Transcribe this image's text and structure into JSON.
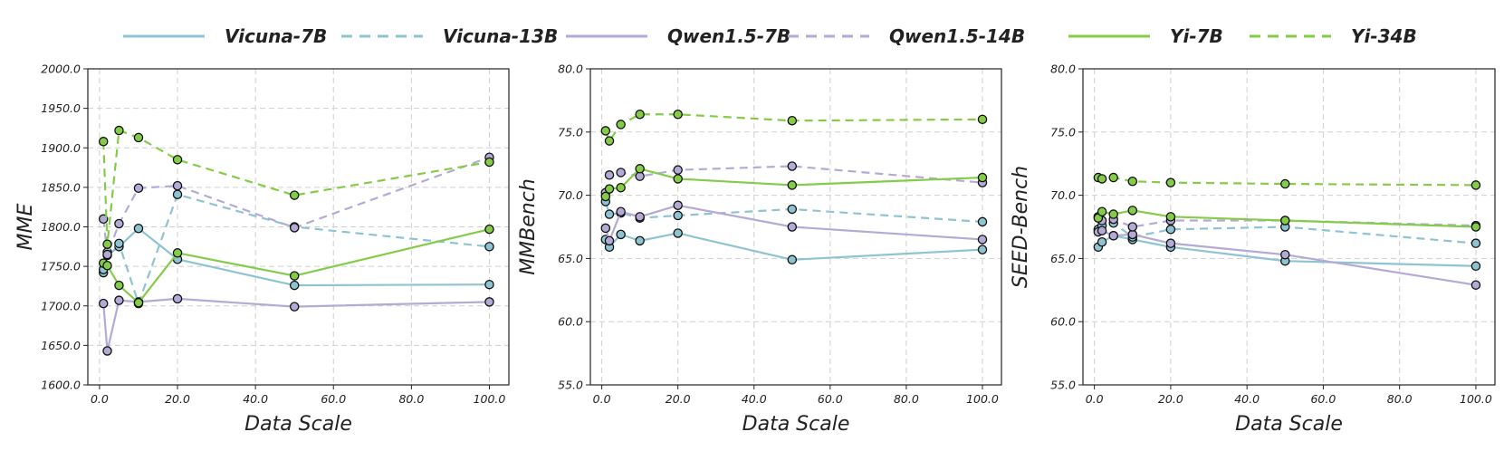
{
  "legend": {
    "position": "top-center",
    "entries": [
      {
        "label": "Vicuna-7B",
        "color": "#8ec3d2",
        "dash": "solid"
      },
      {
        "label": "Vicuna-13B",
        "color": "#8ec3d2",
        "dash": "dashed"
      },
      {
        "label": "Qwen1.5-7B",
        "color": "#b3aad6",
        "dash": "solid"
      },
      {
        "label": "Qwen1.5-14B",
        "color": "#b3aad6",
        "dash": "dashed"
      },
      {
        "label": "Yi-7B",
        "color": "#84cc48",
        "dash": "solid"
      },
      {
        "label": "Yi-34B",
        "color": "#84cc48",
        "dash": "dashed"
      }
    ]
  },
  "chart_data": [
    {
      "type": "line",
      "xlabel": "Data Scale",
      "ylabel": "MME",
      "xlim": [
        -3,
        105
      ],
      "ylim": [
        1600,
        2000
      ],
      "xticks": [
        0,
        20,
        40,
        60,
        80,
        100
      ],
      "xtick_labels": [
        "0.0",
        "20.0",
        "40.0",
        "60.0",
        "80.0",
        "100.0"
      ],
      "yticks": [
        1600,
        1650,
        1700,
        1750,
        1800,
        1850,
        1900,
        1950,
        2000
      ],
      "ytick_labels": [
        "1600.0",
        "1650.0",
        "1700.0",
        "1750.0",
        "1800.0",
        "1850.0",
        "1900.0",
        "1950.0",
        "2000.0"
      ],
      "grid": true,
      "series": [
        {
          "name": "Vicuna-7B",
          "x": [
            1,
            2,
            5,
            10,
            20,
            50,
            100
          ],
          "y": [
            1742,
            1764,
            1775,
            1798,
            1759,
            1726,
            1727
          ]
        },
        {
          "name": "Vicuna-13B",
          "x": [
            1,
            2,
            5,
            10,
            20,
            50,
            100
          ],
          "y": [
            1746,
            1768,
            1779,
            1703,
            1841,
            1800,
            1775
          ]
        },
        {
          "name": "Qwen1.5-7B",
          "x": [
            1,
            2,
            5,
            10,
            20,
            50,
            100
          ],
          "y": [
            1703,
            1643,
            1707,
            1705,
            1709,
            1699,
            1705
          ]
        },
        {
          "name": "Qwen1.5-14B",
          "x": [
            1,
            2,
            5,
            10,
            20,
            50,
            100
          ],
          "y": [
            1810,
            1765,
            1804,
            1849,
            1852,
            1799,
            1888
          ]
        },
        {
          "name": "Yi-7B",
          "x": [
            1,
            2,
            5,
            10,
            20,
            50,
            100
          ],
          "y": [
            1754,
            1751,
            1726,
            1704,
            1767,
            1738,
            1797
          ]
        },
        {
          "name": "Yi-34B",
          "x": [
            1,
            2,
            5,
            10,
            20,
            50,
            100
          ],
          "y": [
            1908,
            1778,
            1922,
            1913,
            1885,
            1840,
            1882
          ]
        }
      ]
    },
    {
      "type": "line",
      "xlabel": "Data Scale",
      "ylabel": "MMBench",
      "xlim": [
        -3,
        105
      ],
      "ylim": [
        55,
        80
      ],
      "xticks": [
        0,
        20,
        40,
        60,
        80,
        100
      ],
      "xtick_labels": [
        "0.0",
        "20.0",
        "40.0",
        "60.0",
        "80.0",
        "100.0"
      ],
      "yticks": [
        55,
        60,
        65,
        70,
        75,
        80
      ],
      "ytick_labels": [
        "55.0",
        "60.0",
        "65.0",
        "70.0",
        "75.0",
        "80.0"
      ],
      "grid": true,
      "series": [
        {
          "name": "Vicuna-7B",
          "x": [
            1,
            2,
            5,
            10,
            20,
            50,
            100
          ],
          "y": [
            66.5,
            65.9,
            66.9,
            66.4,
            67.0,
            64.9,
            65.7
          ]
        },
        {
          "name": "Vicuna-13B",
          "x": [
            1,
            2,
            5,
            10,
            20,
            50,
            100
          ],
          "y": [
            69.5,
            68.5,
            68.6,
            68.2,
            68.4,
            68.9,
            67.9
          ]
        },
        {
          "name": "Qwen1.5-7B",
          "x": [
            1,
            2,
            5,
            10,
            20,
            50,
            100
          ],
          "y": [
            67.4,
            66.4,
            68.7,
            68.3,
            69.2,
            67.5,
            66.5
          ]
        },
        {
          "name": "Qwen1.5-14B",
          "x": [
            1,
            2,
            5,
            10,
            20,
            50,
            100
          ],
          "y": [
            70.2,
            71.6,
            71.8,
            71.5,
            72.0,
            72.3,
            71.0
          ]
        },
        {
          "name": "Yi-7B",
          "x": [
            1,
            2,
            5,
            10,
            20,
            50,
            100
          ],
          "y": [
            69.9,
            70.5,
            70.6,
            72.1,
            71.3,
            70.8,
            71.4
          ]
        },
        {
          "name": "Yi-34B",
          "x": [
            1,
            2,
            5,
            10,
            20,
            50,
            100
          ],
          "y": [
            75.1,
            74.3,
            75.6,
            76.4,
            76.4,
            75.9,
            76.0
          ]
        }
      ]
    },
    {
      "type": "line",
      "xlabel": "Data Scale",
      "ylabel": "SEED-Bench",
      "xlim": [
        -3,
        105
      ],
      "ylim": [
        55,
        80
      ],
      "xticks": [
        0,
        20,
        40,
        60,
        80,
        100
      ],
      "xtick_labels": [
        "0.0",
        "20.0",
        "40.0",
        "60.0",
        "80.0",
        "100.0"
      ],
      "yticks": [
        55,
        60,
        65,
        70,
        75,
        80
      ],
      "ytick_labels": [
        "55.0",
        "60.0",
        "65.0",
        "70.0",
        "75.0",
        "80.0"
      ],
      "grid": true,
      "series": [
        {
          "name": "Vicuna-7B",
          "x": [
            1,
            2,
            5,
            10,
            20,
            50,
            100
          ],
          "y": [
            65.9,
            66.3,
            66.8,
            66.5,
            65.9,
            64.8,
            64.4
          ]
        },
        {
          "name": "Vicuna-13B",
          "x": [
            1,
            2,
            5,
            10,
            20,
            50,
            100
          ],
          "y": [
            67.3,
            67.6,
            67.8,
            66.7,
            67.3,
            67.5,
            66.2
          ]
        },
        {
          "name": "Qwen1.5-7B",
          "x": [
            1,
            2,
            5,
            10,
            20,
            50,
            100
          ],
          "y": [
            67.1,
            67.2,
            66.8,
            66.9,
            66.2,
            65.3,
            62.9
          ]
        },
        {
          "name": "Qwen1.5-14B",
          "x": [
            1,
            2,
            5,
            10,
            20,
            50,
            100
          ],
          "y": [
            68.3,
            68.0,
            68.1,
            67.5,
            68.0,
            68.0,
            67.6
          ]
        },
        {
          "name": "Yi-7B",
          "x": [
            1,
            2,
            5,
            10,
            20,
            50,
            100
          ],
          "y": [
            68.2,
            68.7,
            68.5,
            68.8,
            68.3,
            68.0,
            67.5
          ]
        },
        {
          "name": "Yi-34B",
          "x": [
            1,
            2,
            5,
            10,
            20,
            50,
            100
          ],
          "y": [
            71.4,
            71.3,
            71.4,
            71.1,
            71.0,
            70.9,
            70.8
          ]
        }
      ]
    }
  ]
}
